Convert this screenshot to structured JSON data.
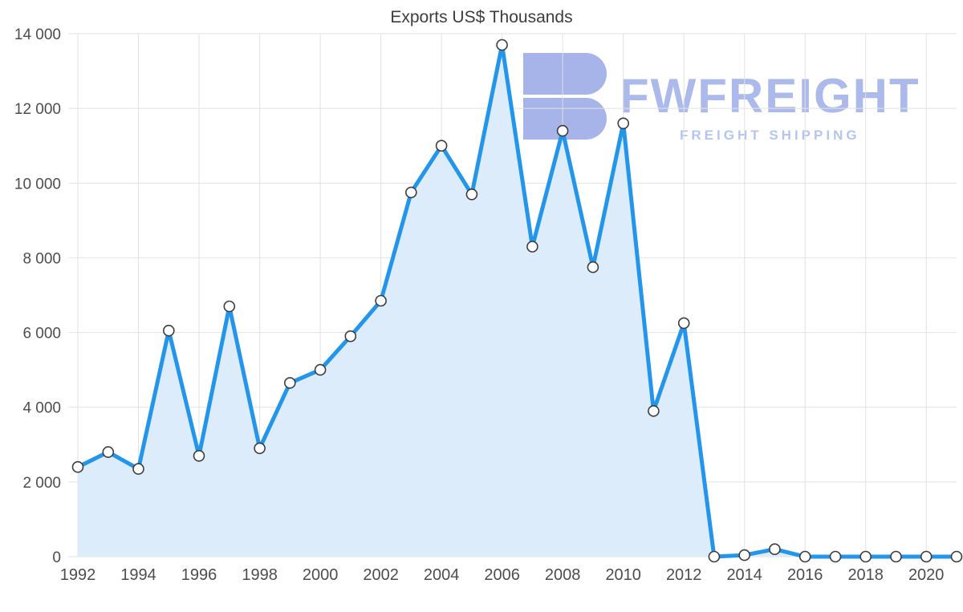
{
  "chart_data": {
    "type": "area",
    "title": "Exports US$ Thousands",
    "xlabel": "",
    "ylabel": "",
    "ylim": [
      0,
      14000
    ],
    "grid": true,
    "legend": "none",
    "x": [
      1992,
      1993,
      1994,
      1995,
      1996,
      1997,
      1998,
      1999,
      2000,
      2001,
      2002,
      2003,
      2004,
      2005,
      2006,
      2007,
      2008,
      2009,
      2010,
      2011,
      2012,
      2013,
      2014,
      2015,
      2016,
      2017,
      2018,
      2019,
      2020,
      2021
    ],
    "values": [
      2400,
      2800,
      2350,
      6050,
      2700,
      6700,
      2900,
      4650,
      5000,
      5900,
      6850,
      9750,
      11000,
      9700,
      13700,
      8300,
      11400,
      7750,
      11600,
      3900,
      6250,
      0,
      40,
      200,
      0,
      0,
      0,
      0,
      0,
      0
    ],
    "y_ticks": [
      0,
      2000,
      4000,
      6000,
      8000,
      10000,
      12000,
      14000
    ],
    "y_tick_labels": [
      "0",
      "2 000",
      "4 000",
      "6 000",
      "8 000",
      "10 000",
      "12 000",
      "14 000"
    ],
    "x_ticks": [
      1992,
      1994,
      1996,
      1998,
      2000,
      2002,
      2004,
      2006,
      2008,
      2010,
      2012,
      2014,
      2016,
      2018,
      2020
    ],
    "x_tick_labels": [
      "1992",
      "1994",
      "1996",
      "1998",
      "2000",
      "2002",
      "2004",
      "2006",
      "2008",
      "2010",
      "2012",
      "2014",
      "2016",
      "2018",
      "2020"
    ]
  },
  "watermark": {
    "wordmark": "FWFREIGHT",
    "tagline": "FREIGHT SHIPPING",
    "logo_icon": "fwfreight-logo-3"
  },
  "colors": {
    "line": "#2396ec",
    "fill": "#ddecfa",
    "grid": "#e2e2e2",
    "marker_fill": "#ffffff",
    "marker_stroke": "#3c3c3c",
    "tick": "#4d4d4d",
    "title": "#3d3d3d",
    "wordmark": "#a8b7ea",
    "tagline": "#b0c4f0",
    "logo": "#a2b1e8"
  }
}
